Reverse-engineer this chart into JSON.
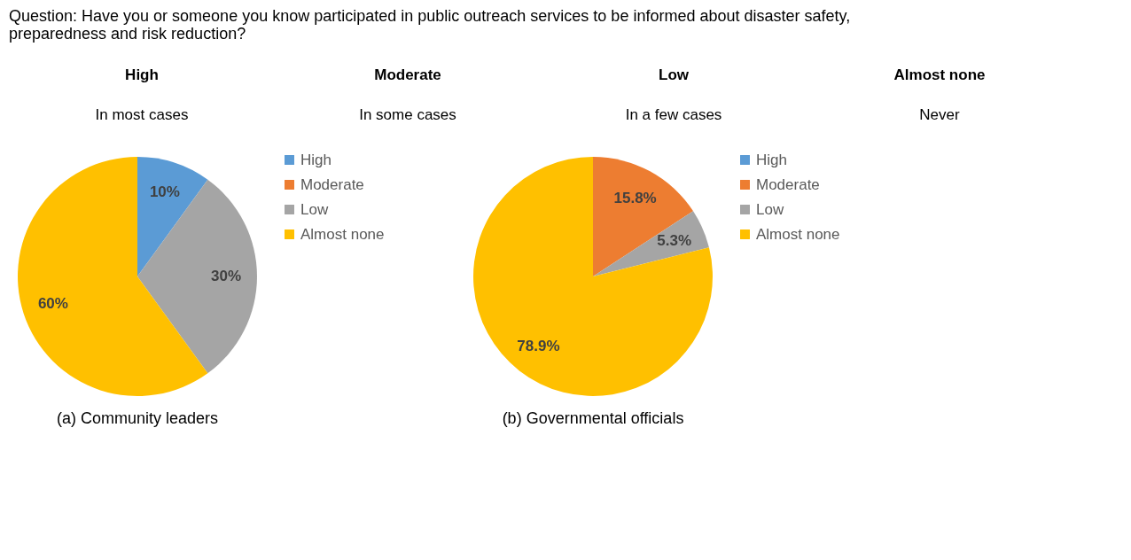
{
  "chart_data": [
    {
      "type": "other",
      "title": "Question: Have you or someone you know participated in public outreach services to be informed about disaster safety, preparedness and risk reduction?",
      "annotations": [
        "High",
        "Moderate",
        "Low",
        "Almost none",
        "In most cases",
        "In some cases",
        "In a few cases",
        "Never"
      ]
    },
    {
      "type": "pie",
      "title": "(a) Community leaders",
      "categories": [
        "High",
        "Moderate",
        "Low",
        "Almost none"
      ],
      "values": [
        10,
        0,
        30,
        60
      ],
      "colors": [
        "#5b9bd5",
        "#ed7d31",
        "#a5a5a5",
        "#ffc000"
      ],
      "value_labels": [
        "10%",
        null,
        "30%",
        "60%"
      ],
      "legend": "right"
    },
    {
      "type": "pie",
      "title": "(b) Governmental officials",
      "categories": [
        "High",
        "Moderate",
        "Low",
        "Almost none"
      ],
      "values": [
        0,
        15.8,
        5.3,
        78.9
      ],
      "colors": [
        "#5b9bd5",
        "#ed7d31",
        "#a5a5a5",
        "#ffc000"
      ],
      "value_labels": [
        null,
        "15.8%",
        "5.3%",
        "78.9%"
      ],
      "legend": "right"
    }
  ]
}
